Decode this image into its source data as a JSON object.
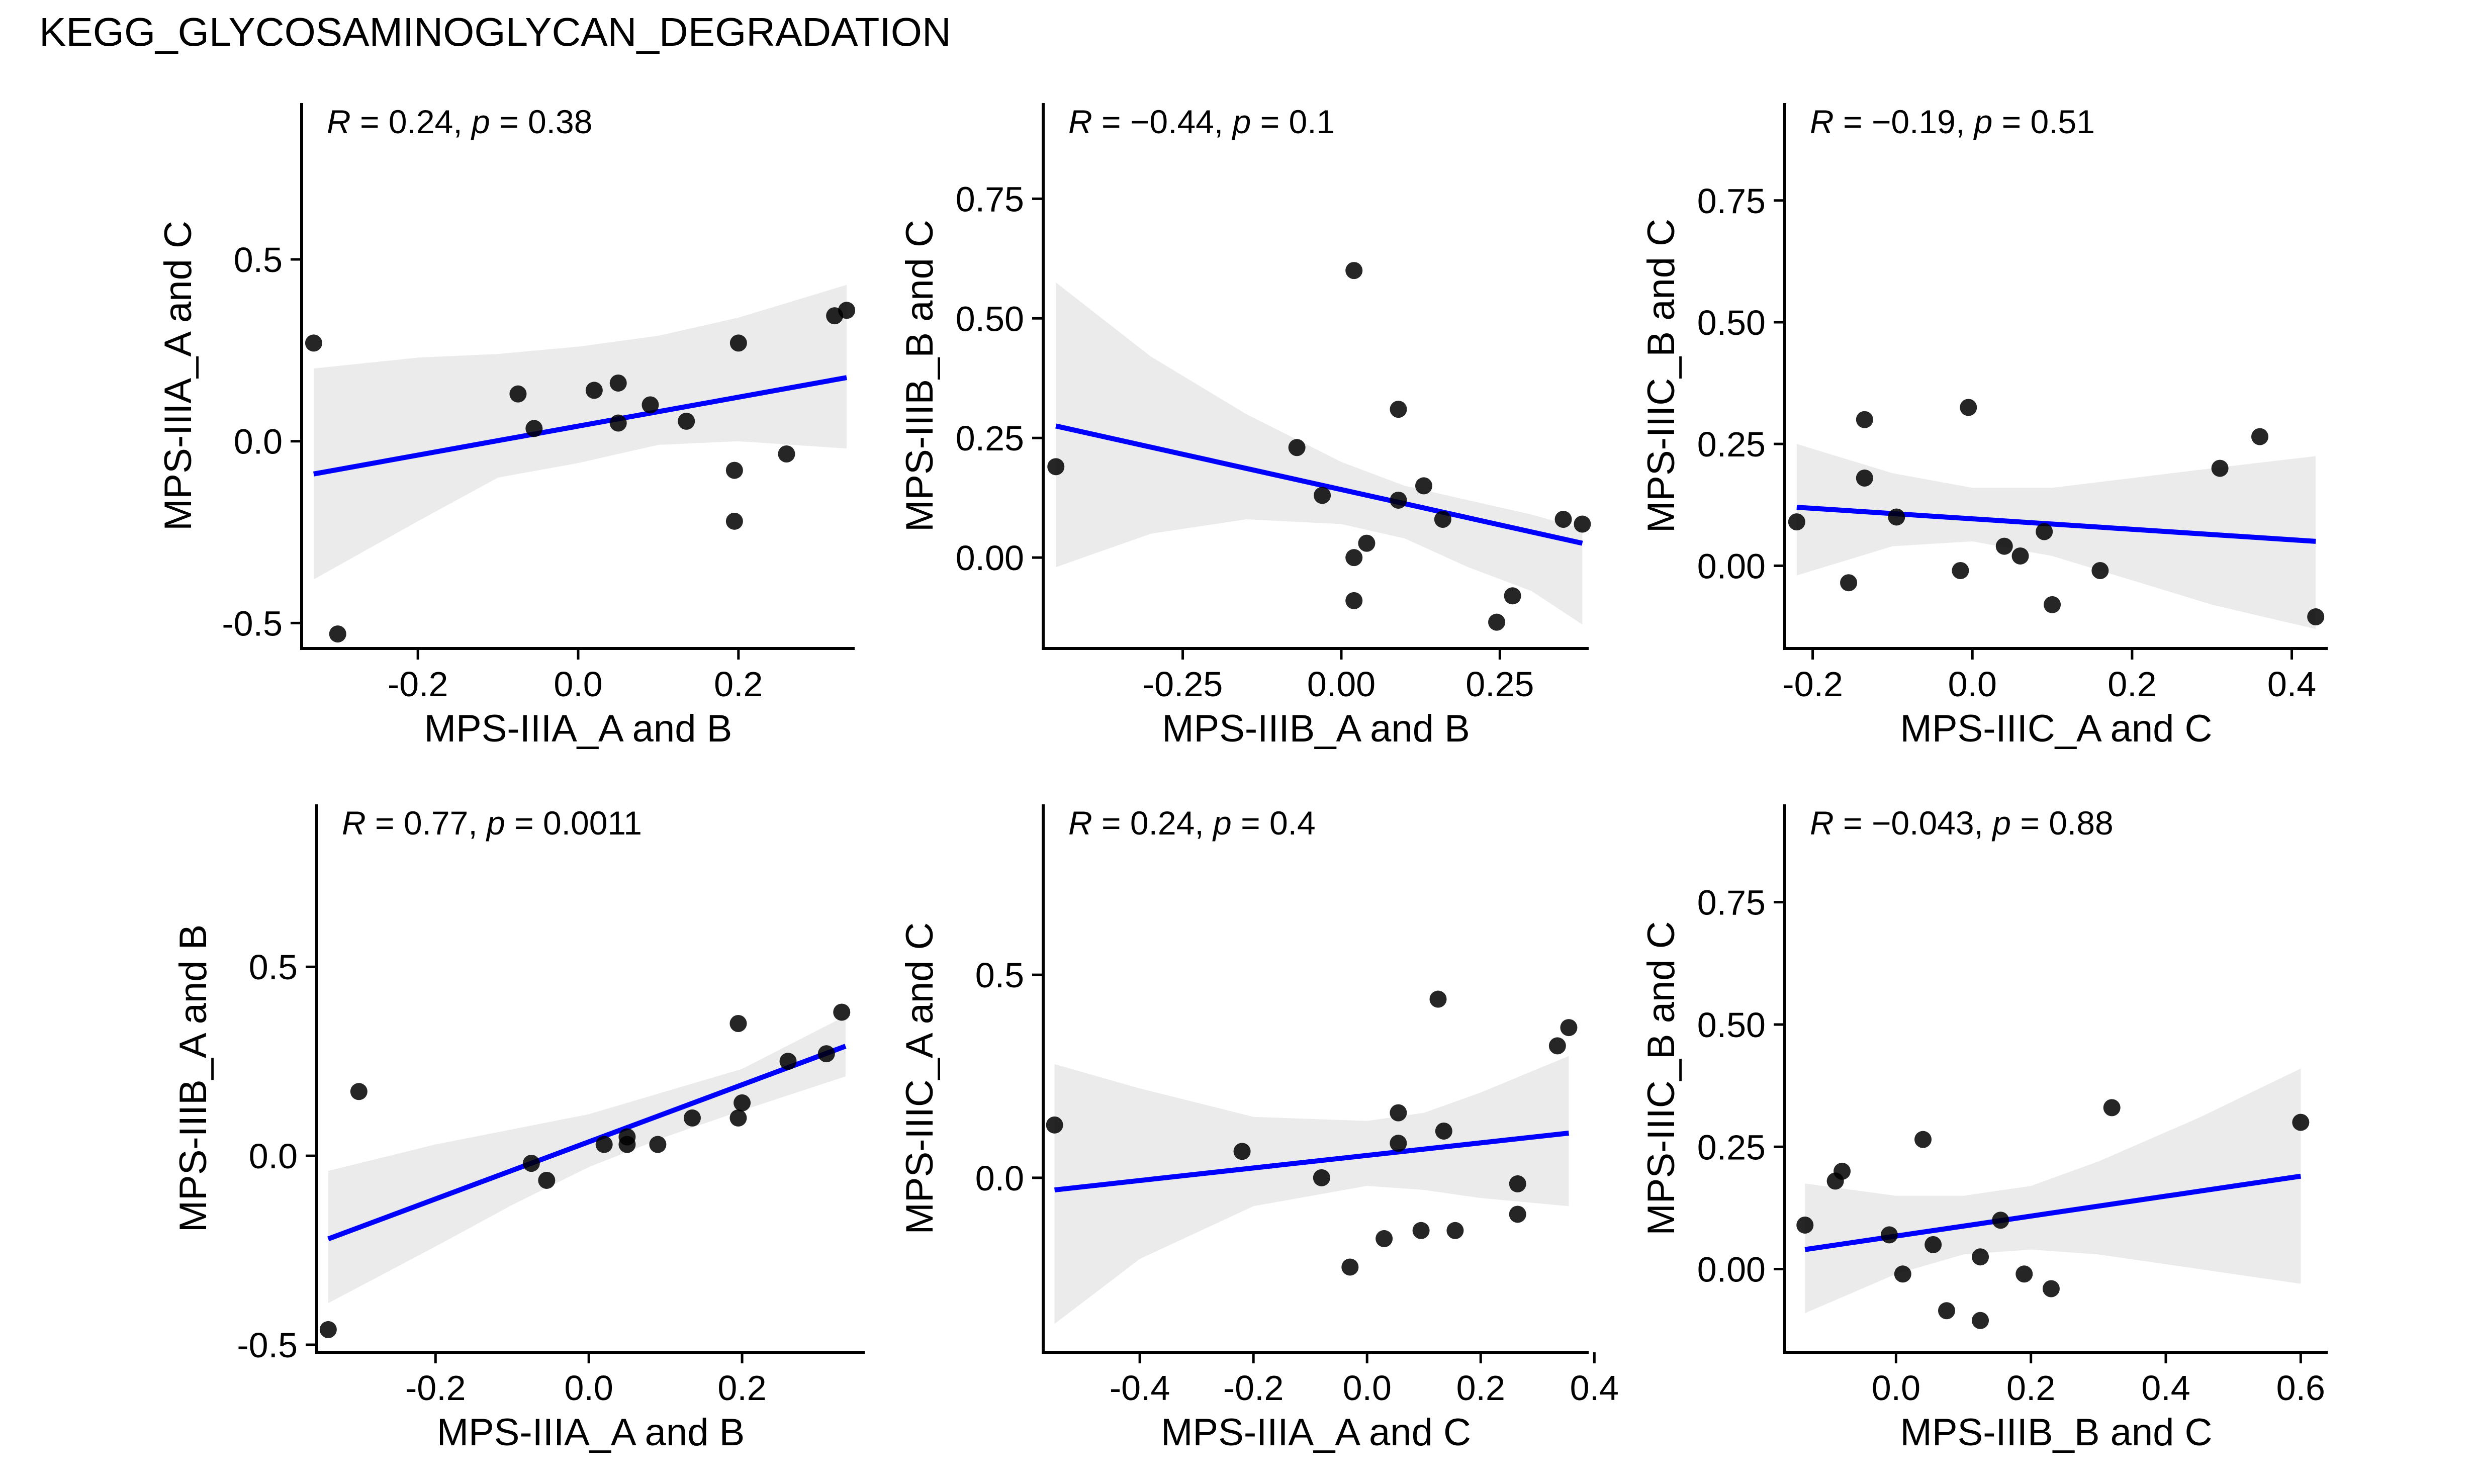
{
  "title": "KEGG_GLYCOSAMINOGLYCAN_DEGRADATION",
  "colors": {
    "line": "#0000ff",
    "band": "#ebebeb",
    "point": "#000000",
    "point_alpha": 0.85
  },
  "chart_data": [
    {
      "type": "scatter",
      "xlabel": "MPS-IIIA_A and B",
      "ylabel": "MPS-IIIA_A and C",
      "stat_r": "0.24",
      "stat_p": "0.38",
      "xlim": [
        -0.345,
        0.345
      ],
      "ylim": [
        -0.57,
        0.93
      ],
      "xticks": [
        -0.2,
        0.0,
        0.2
      ],
      "xtick_labels": [
        "-0.2",
        "0.0",
        "0.2"
      ],
      "yticks": [
        -0.5,
        0.0,
        0.5
      ],
      "ytick_labels": [
        "-0.5",
        "0.0",
        "0.5"
      ],
      "points": [
        [
          -0.33,
          0.27
        ],
        [
          -0.3,
          -0.53
        ],
        [
          -0.075,
          0.13
        ],
        [
          -0.055,
          0.035
        ],
        [
          0.02,
          0.14
        ],
        [
          0.05,
          0.16
        ],
        [
          0.05,
          0.05
        ],
        [
          0.09,
          0.1
        ],
        [
          0.135,
          0.055
        ],
        [
          0.195,
          -0.08
        ],
        [
          0.195,
          -0.22
        ],
        [
          0.2,
          0.27
        ],
        [
          0.26,
          -0.035
        ],
        [
          0.32,
          0.345
        ],
        [
          0.335,
          0.36
        ]
      ],
      "fit": {
        "x0": -0.33,
        "x1": 0.335,
        "y0": -0.09,
        "y1": 0.175
      },
      "band_upper": [
        [
          -0.33,
          0.2
        ],
        [
          -0.2,
          0.23
        ],
        [
          -0.1,
          0.24
        ],
        [
          0.0,
          0.26
        ],
        [
          0.1,
          0.29
        ],
        [
          0.2,
          0.34
        ],
        [
          0.335,
          0.43
        ]
      ],
      "band_lower": [
        [
          -0.33,
          -0.38
        ],
        [
          -0.2,
          -0.22
        ],
        [
          -0.1,
          -0.1
        ],
        [
          0.0,
          -0.06
        ],
        [
          0.1,
          -0.01
        ],
        [
          0.2,
          0.0
        ],
        [
          0.335,
          -0.02
        ]
      ]
    },
    {
      "type": "scatter",
      "xlabel": "MPS-IIIB_A and B",
      "ylabel": "MPS-IIIB_B and C",
      "stat_r": "−0.44",
      "stat_p": "0.1",
      "xlim": [
        -0.47,
        0.39
      ],
      "ylim": [
        -0.19,
        0.95
      ],
      "xticks": [
        -0.25,
        0.0,
        0.25
      ],
      "xtick_labels": [
        "-0.25",
        "0.00",
        "0.25"
      ],
      "yticks": [
        0.0,
        0.25,
        0.5,
        0.75
      ],
      "ytick_labels": [
        "0.00",
        "0.25",
        "0.50",
        "0.75"
      ],
      "points": [
        [
          -0.45,
          0.19
        ],
        [
          -0.07,
          0.23
        ],
        [
          -0.03,
          0.13
        ],
        [
          0.02,
          0.6
        ],
        [
          0.02,
          0.0
        ],
        [
          0.02,
          -0.09
        ],
        [
          0.04,
          0.03
        ],
        [
          0.09,
          0.12
        ],
        [
          0.09,
          0.31
        ],
        [
          0.13,
          0.15
        ],
        [
          0.16,
          0.08
        ],
        [
          0.245,
          -0.135
        ],
        [
          0.27,
          -0.08
        ],
        [
          0.35,
          0.08
        ],
        [
          0.38,
          0.07
        ]
      ],
      "fit": {
        "x0": -0.45,
        "x1": 0.38,
        "y0": 0.275,
        "y1": 0.03
      },
      "band_upper": [
        [
          -0.45,
          0.575
        ],
        [
          -0.3,
          0.42
        ],
        [
          -0.15,
          0.3
        ],
        [
          0.0,
          0.2
        ],
        [
          0.1,
          0.15
        ],
        [
          0.2,
          0.12
        ],
        [
          0.3,
          0.09
        ],
        [
          0.38,
          0.06
        ]
      ],
      "band_lower": [
        [
          -0.45,
          -0.02
        ],
        [
          -0.3,
          0.05
        ],
        [
          -0.15,
          0.08
        ],
        [
          0.0,
          0.07
        ],
        [
          0.1,
          0.04
        ],
        [
          0.2,
          -0.02
        ],
        [
          0.3,
          -0.07
        ],
        [
          0.38,
          -0.14
        ]
      ]
    },
    {
      "type": "scatter",
      "xlabel": "MPS-IIIC_A and C",
      "ylabel": "MPS-IIIC_B and C",
      "stat_r": "−0.19",
      "stat_p": "0.51",
      "xlim": [
        -0.235,
        0.445
      ],
      "ylim": [
        -0.17,
        0.95
      ],
      "xticks": [
        -0.2,
        0.0,
        0.2,
        0.4
      ],
      "xtick_labels": [
        "-0.2",
        "0.0",
        "0.2",
        "0.4"
      ],
      "yticks": [
        0.0,
        0.25,
        0.5,
        0.75
      ],
      "ytick_labels": [
        "0.00",
        "0.25",
        "0.50",
        "0.75"
      ],
      "points": [
        [
          -0.22,
          0.09
        ],
        [
          -0.155,
          -0.035
        ],
        [
          -0.135,
          0.3
        ],
        [
          -0.135,
          0.18
        ],
        [
          -0.095,
          0.1
        ],
        [
          -0.015,
          -0.01
        ],
        [
          -0.005,
          0.325
        ],
        [
          0.04,
          0.04
        ],
        [
          0.06,
          0.02
        ],
        [
          0.09,
          0.07
        ],
        [
          0.1,
          -0.08
        ],
        [
          0.16,
          -0.01
        ],
        [
          0.31,
          0.2
        ],
        [
          0.36,
          0.265
        ],
        [
          0.43,
          -0.105
        ]
      ],
      "fit": {
        "x0": -0.22,
        "x1": 0.43,
        "y0": 0.12,
        "y1": 0.05
      },
      "band_upper": [
        [
          -0.22,
          0.25
        ],
        [
          -0.1,
          0.19
        ],
        [
          0.0,
          0.16
        ],
        [
          0.1,
          0.16
        ],
        [
          0.2,
          0.18
        ],
        [
          0.3,
          0.2
        ],
        [
          0.43,
          0.225
        ]
      ],
      "band_lower": [
        [
          -0.22,
          -0.02
        ],
        [
          -0.1,
          0.04
        ],
        [
          0.0,
          0.05
        ],
        [
          0.1,
          0.02
        ],
        [
          0.2,
          -0.03
        ],
        [
          0.3,
          -0.08
        ],
        [
          0.43,
          -0.13
        ]
      ]
    },
    {
      "type": "scatter",
      "xlabel": "MPS-IIIA_A and B",
      "ylabel": "MPS-IIIB_A and B",
      "stat_r": "0.77",
      "stat_p": "0.0011",
      "xlim": [
        -0.355,
        0.36
      ],
      "ylim": [
        -0.52,
        0.93
      ],
      "xticks": [
        -0.2,
        0.0,
        0.2
      ],
      "xtick_labels": [
        "-0.2",
        "0.0",
        "0.2"
      ],
      "yticks": [
        -0.5,
        0.0,
        0.5
      ],
      "ytick_labels": [
        "-0.5",
        "0.0",
        "0.5"
      ],
      "points": [
        [
          -0.34,
          -0.46
        ],
        [
          -0.3,
          0.17
        ],
        [
          -0.075,
          -0.02
        ],
        [
          -0.055,
          -0.065
        ],
        [
          0.02,
          0.03
        ],
        [
          0.05,
          0.03
        ],
        [
          0.05,
          0.05
        ],
        [
          0.09,
          0.03
        ],
        [
          0.135,
          0.1
        ],
        [
          0.195,
          0.35
        ],
        [
          0.195,
          0.1
        ],
        [
          0.2,
          0.14
        ],
        [
          0.26,
          0.25
        ],
        [
          0.31,
          0.27
        ],
        [
          0.33,
          0.38
        ]
      ],
      "fit": {
        "x0": -0.34,
        "x1": 0.335,
        "y0": -0.22,
        "y1": 0.29
      },
      "band_upper": [
        [
          -0.34,
          -0.04
        ],
        [
          -0.2,
          0.03
        ],
        [
          -0.1,
          0.07
        ],
        [
          0.0,
          0.11
        ],
        [
          0.1,
          0.17
        ],
        [
          0.2,
          0.23
        ],
        [
          0.335,
          0.37
        ]
      ],
      "band_lower": [
        [
          -0.34,
          -0.39
        ],
        [
          -0.2,
          -0.24
        ],
        [
          -0.1,
          -0.13
        ],
        [
          0.0,
          -0.03
        ],
        [
          0.1,
          0.05
        ],
        [
          0.2,
          0.12
        ],
        [
          0.335,
          0.21
        ]
      ]
    },
    {
      "type": "scatter",
      "xlabel": "MPS-IIIA_A and C",
      "ylabel": "MPS-IIIC_A and C",
      "stat_r": "0.24",
      "stat_p": "0.4",
      "xlim": [
        -0.57,
        0.39
      ],
      "ylim": [
        -0.43,
        0.92
      ],
      "xticks": [
        -0.4,
        -0.2,
        0.0,
        0.2,
        0.4
      ],
      "xtick_labels": [
        "-0.4",
        "-0.2",
        "0.0",
        "0.2",
        "0.4"
      ],
      "yticks": [
        0.0,
        0.5
      ],
      "ytick_labels": [
        "0.0",
        "0.5"
      ],
      "points": [
        [
          -0.55,
          0.13
        ],
        [
          -0.22,
          0.065
        ],
        [
          -0.08,
          0.0
        ],
        [
          -0.03,
          -0.22
        ],
        [
          0.03,
          -0.15
        ],
        [
          0.055,
          0.16
        ],
        [
          0.055,
          0.085
        ],
        [
          0.095,
          -0.13
        ],
        [
          0.125,
          0.44
        ],
        [
          0.135,
          0.115
        ],
        [
          0.155,
          -0.13
        ],
        [
          0.265,
          -0.015
        ],
        [
          0.265,
          -0.09
        ],
        [
          0.335,
          0.325
        ],
        [
          0.355,
          0.37
        ]
      ],
      "fit": {
        "x0": -0.55,
        "x1": 0.355,
        "y0": -0.03,
        "y1": 0.11
      },
      "band_upper": [
        [
          -0.55,
          0.28
        ],
        [
          -0.4,
          0.22
        ],
        [
          -0.2,
          0.15
        ],
        [
          0.0,
          0.14
        ],
        [
          0.1,
          0.16
        ],
        [
          0.2,
          0.21
        ],
        [
          0.355,
          0.3
        ]
      ],
      "band_lower": [
        [
          -0.55,
          -0.36
        ],
        [
          -0.4,
          -0.2
        ],
        [
          -0.2,
          -0.07
        ],
        [
          0.0,
          -0.02
        ],
        [
          0.1,
          -0.03
        ],
        [
          0.2,
          -0.05
        ],
        [
          0.355,
          -0.07
        ]
      ]
    },
    {
      "type": "scatter",
      "xlabel": "MPS-IIIB_B and C",
      "ylabel": "MPS-IIIC_B and C",
      "stat_r": "−0.043",
      "stat_p": "0.88",
      "xlim": [
        -0.165,
        0.64
      ],
      "ylim": [
        -0.17,
        0.95
      ],
      "xticks": [
        0.0,
        0.2,
        0.4,
        0.6
      ],
      "xtick_labels": [
        "0.0",
        "0.2",
        "0.4",
        "0.6"
      ],
      "yticks": [
        0.0,
        0.25,
        0.5,
        0.75
      ],
      "ytick_labels": [
        "0.00",
        "0.25",
        "0.50",
        "0.75"
      ],
      "points": [
        [
          -0.135,
          0.09
        ],
        [
          -0.09,
          0.18
        ],
        [
          -0.08,
          0.2
        ],
        [
          -0.01,
          0.07
        ],
        [
          0.01,
          -0.01
        ],
        [
          0.04,
          0.265
        ],
        [
          0.055,
          0.05
        ],
        [
          0.075,
          -0.085
        ],
        [
          0.125,
          0.025
        ],
        [
          0.125,
          -0.105
        ],
        [
          0.155,
          0.1
        ],
        [
          0.19,
          -0.01
        ],
        [
          0.23,
          -0.04
        ],
        [
          0.32,
          0.33
        ],
        [
          0.6,
          0.3
        ]
      ],
      "fit": {
        "x0": -0.135,
        "x1": 0.6,
        "y0": 0.04,
        "y1": 0.19
      },
      "band_upper": [
        [
          -0.135,
          0.175
        ],
        [
          0.0,
          0.15
        ],
        [
          0.1,
          0.15
        ],
        [
          0.2,
          0.17
        ],
        [
          0.3,
          0.22
        ],
        [
          0.45,
          0.31
        ],
        [
          0.6,
          0.41
        ]
      ],
      "band_lower": [
        [
          -0.135,
          -0.09
        ],
        [
          0.0,
          -0.01
        ],
        [
          0.1,
          0.03
        ],
        [
          0.2,
          0.04
        ],
        [
          0.3,
          0.03
        ],
        [
          0.45,
          0.0
        ],
        [
          0.6,
          -0.03
        ]
      ]
    }
  ]
}
